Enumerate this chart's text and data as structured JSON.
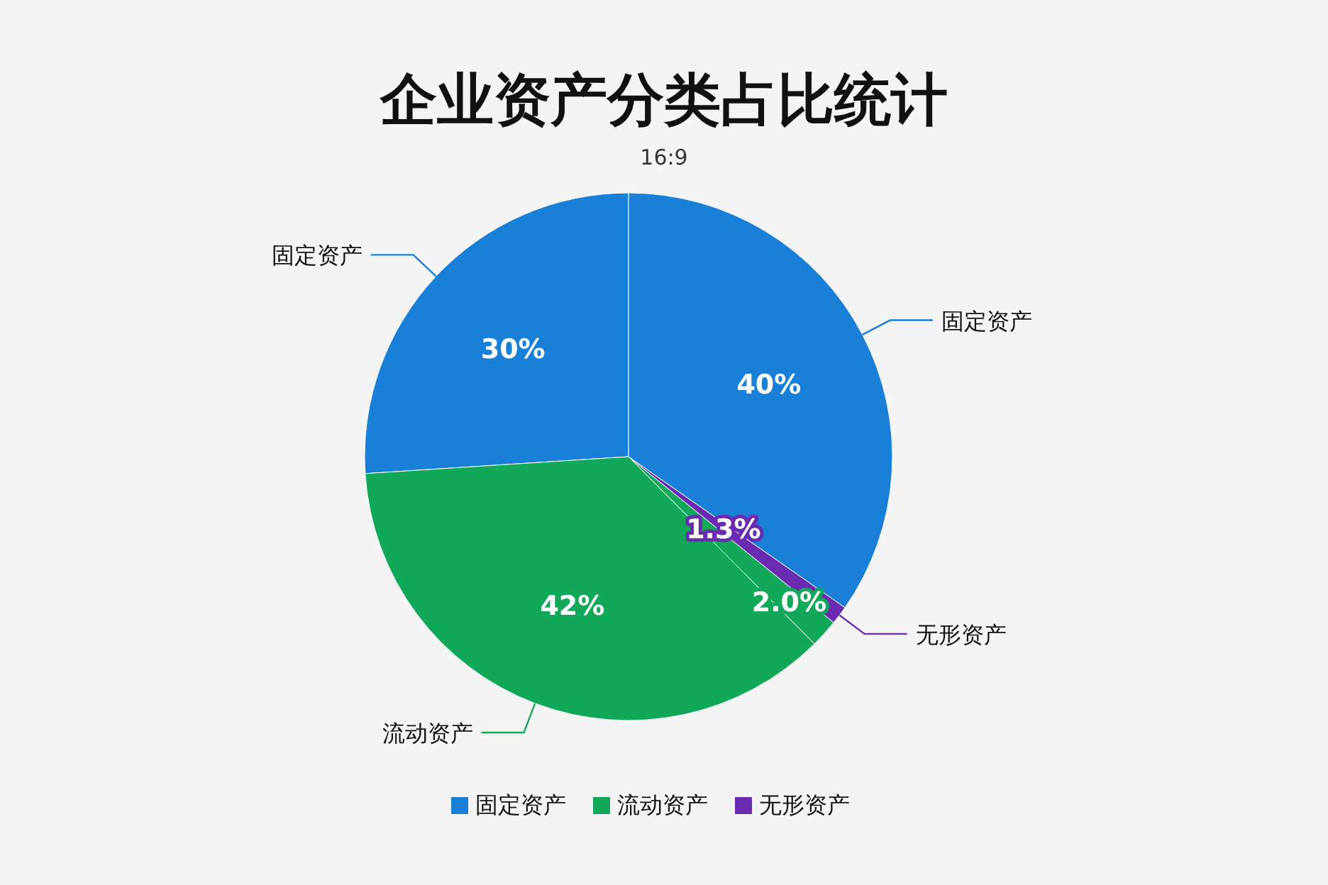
{
  "chart_data": {
    "type": "pie",
    "title": "企业资产分类占比统计",
    "subtitle": "16:9",
    "categories": [
      "固定资产",
      "流动资产",
      null,
      "无形资产",
      "固定资产"
    ],
    "values": [
      30,
      42,
      2.0,
      1.3,
      40
    ],
    "value_labels": [
      "30%",
      "42%",
      "2.0%",
      "1.3%",
      "40%"
    ],
    "colors": [
      "#1a7fd6",
      "#12a85a",
      "#12a85a",
      "#6a2bb0",
      "#1a7fd6"
    ],
    "legend": "bottom"
  }
}
